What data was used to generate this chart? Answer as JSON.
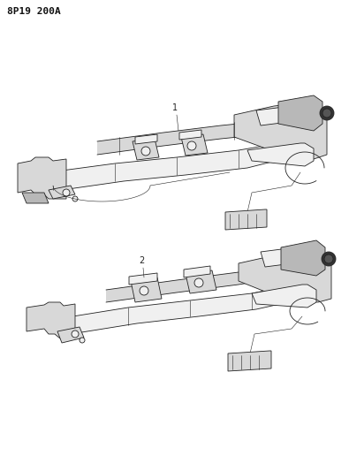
{
  "background_color": "#ffffff",
  "page_label": "8P19 200A",
  "page_label_fontsize": 8,
  "page_label_color": "#111111",
  "line_color": "#222222",
  "fill_light": "#f0f0f0",
  "fill_mid": "#d8d8d8",
  "fill_dark": "#b8b8b8",
  "lw_main": 0.6,
  "lw_thin": 0.4,
  "top_label": "1",
  "bottom_label": "2"
}
